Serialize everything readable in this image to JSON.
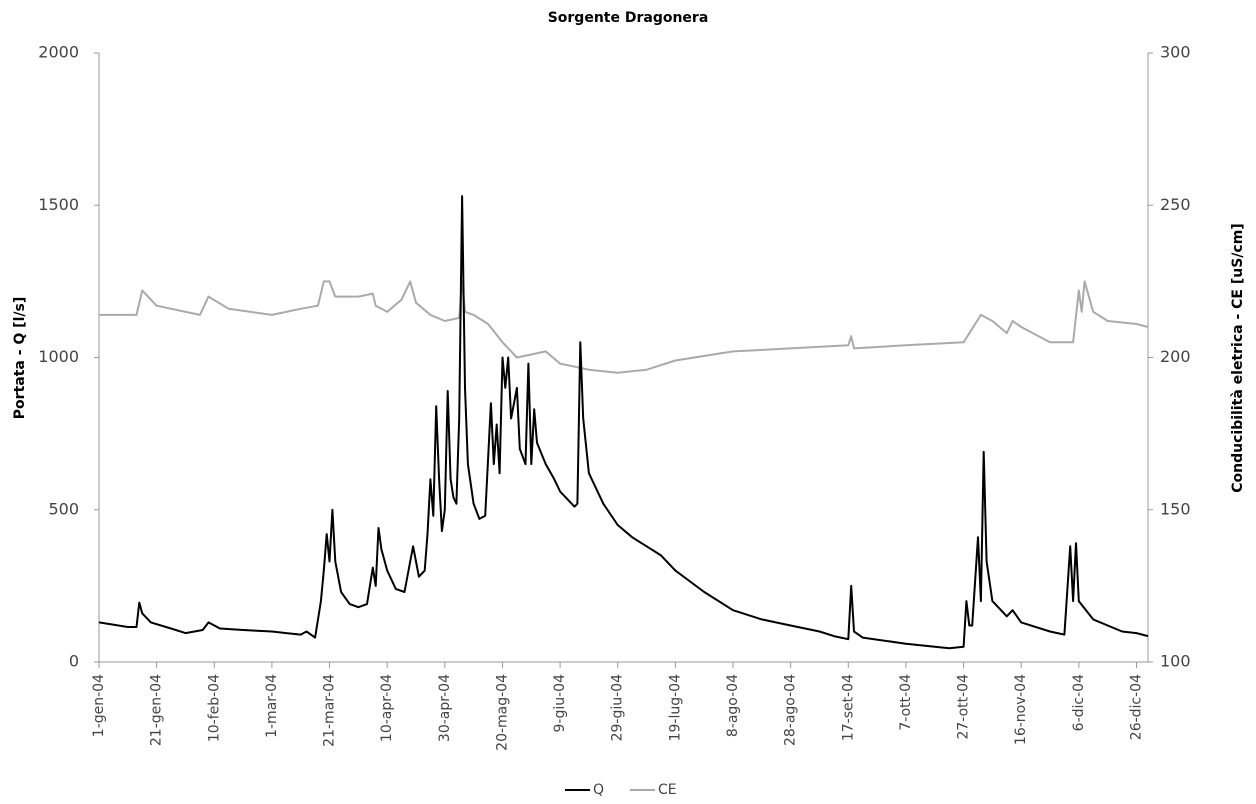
{
  "chart_data": {
    "type": "line",
    "title": "Sorgente Dragonera",
    "y_label": "Portata - Q  [l/s]",
    "y2_label": "Conducibilità eletrica  - CE  [uS/cm]",
    "xlim": [
      0,
      364
    ],
    "ylim": [
      0,
      2000
    ],
    "y2lim": [
      100,
      300
    ],
    "yticks": [
      0,
      500,
      1000,
      1500,
      2000
    ],
    "y2ticks": [
      100,
      150,
      200,
      250,
      300
    ],
    "xticks": [
      {
        "value": 0,
        "label": "1-gen-04"
      },
      {
        "value": 20,
        "label": "21-gen-04"
      },
      {
        "value": 40,
        "label": "10-feb-04"
      },
      {
        "value": 60,
        "label": "1-mar-04"
      },
      {
        "value": 80,
        "label": "21-mar-04"
      },
      {
        "value": 100,
        "label": "10-apr-04"
      },
      {
        "value": 120,
        "label": "30-apr-04"
      },
      {
        "value": 140,
        "label": "20-mag-04"
      },
      {
        "value": 160,
        "label": "9-giu-04"
      },
      {
        "value": 180,
        "label": "29-giu-04"
      },
      {
        "value": 200,
        "label": "19-lug-04"
      },
      {
        "value": 220,
        "label": "8-ago-04"
      },
      {
        "value": 240,
        "label": "28-ago-04"
      },
      {
        "value": 260,
        "label": "17-set-04"
      },
      {
        "value": 280,
        "label": "7-ott-04"
      },
      {
        "value": 300,
        "label": "27-ott-04"
      },
      {
        "value": 320,
        "label": "16-nov-04"
      },
      {
        "value": 340,
        "label": "6-dic-04"
      },
      {
        "value": 360,
        "label": "26-dic-04"
      }
    ],
    "legend": "bottom",
    "series": [
      {
        "name": "Q",
        "color": "#000000",
        "x": [
          0,
          10,
          13,
          14,
          15,
          18,
          25,
          30,
          36,
          38,
          42,
          50,
          60,
          65,
          70,
          72,
          75,
          77,
          78,
          79,
          80,
          81,
          82,
          84,
          87,
          90,
          93,
          95,
          96,
          97,
          98,
          100,
          103,
          106,
          108,
          109,
          111,
          113,
          114,
          115,
          116,
          117,
          118,
          119,
          120,
          121,
          122,
          123,
          124,
          125,
          126,
          127,
          128,
          130,
          132,
          134,
          136,
          137,
          138,
          139,
          140,
          141,
          142,
          143,
          145,
          146,
          148,
          149,
          150,
          151,
          152,
          155,
          158,
          160,
          163,
          165,
          166,
          167,
          168,
          170,
          175,
          180,
          185,
          190,
          195,
          200,
          210,
          220,
          230,
          240,
          250,
          255,
          260,
          261,
          262,
          265,
          280,
          295,
          300,
          301,
          302,
          303,
          305,
          306,
          307,
          308,
          310,
          315,
          317,
          320,
          330,
          335,
          337,
          338,
          339,
          340,
          345,
          350,
          355,
          360,
          364
        ],
        "values": [
          130,
          115,
          115,
          195,
          160,
          130,
          110,
          95,
          105,
          130,
          110,
          105,
          100,
          95,
          90,
          100,
          80,
          200,
          300,
          420,
          330,
          500,
          330,
          230,
          190,
          180,
          190,
          310,
          250,
          440,
          370,
          300,
          240,
          230,
          330,
          380,
          280,
          300,
          420,
          600,
          480,
          840,
          600,
          430,
          500,
          890,
          600,
          540,
          520,
          800,
          1530,
          900,
          650,
          520,
          470,
          480,
          850,
          650,
          780,
          620,
          1000,
          900,
          1000,
          800,
          900,
          700,
          650,
          980,
          650,
          830,
          720,
          650,
          600,
          560,
          530,
          510,
          520,
          1050,
          800,
          620,
          520,
          450,
          410,
          380,
          350,
          300,
          230,
          170,
          140,
          120,
          100,
          85,
          75,
          250,
          100,
          80,
          60,
          45,
          50,
          200,
          120,
          120,
          410,
          200,
          690,
          330,
          200,
          150,
          170,
          130,
          100,
          90,
          380,
          200,
          390,
          200,
          140,
          120,
          100,
          95,
          85
        ]
      },
      {
        "name": "CE",
        "color": "#aaaaaa",
        "axis": "y2",
        "x": [
          0,
          13,
          15,
          20,
          35,
          38,
          45,
          60,
          70,
          76,
          78,
          80,
          82,
          90,
          95,
          96,
          100,
          105,
          108,
          110,
          115,
          120,
          125,
          126,
          127,
          130,
          135,
          140,
          145,
          150,
          155,
          160,
          170,
          180,
          190,
          200,
          220,
          240,
          260,
          261,
          262,
          280,
          300,
          306,
          310,
          315,
          317,
          320,
          330,
          338,
          340,
          341,
          342,
          345,
          350,
          360,
          364
        ],
        "values": [
          214,
          214,
          222,
          217,
          214,
          220,
          216,
          214,
          216,
          217,
          225,
          225,
          220,
          220,
          221,
          217,
          215,
          219,
          225,
          218,
          214,
          212,
          213,
          225,
          215,
          214,
          211,
          205,
          200,
          201,
          202,
          198,
          196,
          195,
          196,
          199,
          202,
          203,
          204,
          207,
          203,
          204,
          205,
          214,
          212,
          208,
          212,
          210,
          205,
          205,
          222,
          215,
          225,
          215,
          212,
          211,
          210
        ]
      }
    ]
  }
}
